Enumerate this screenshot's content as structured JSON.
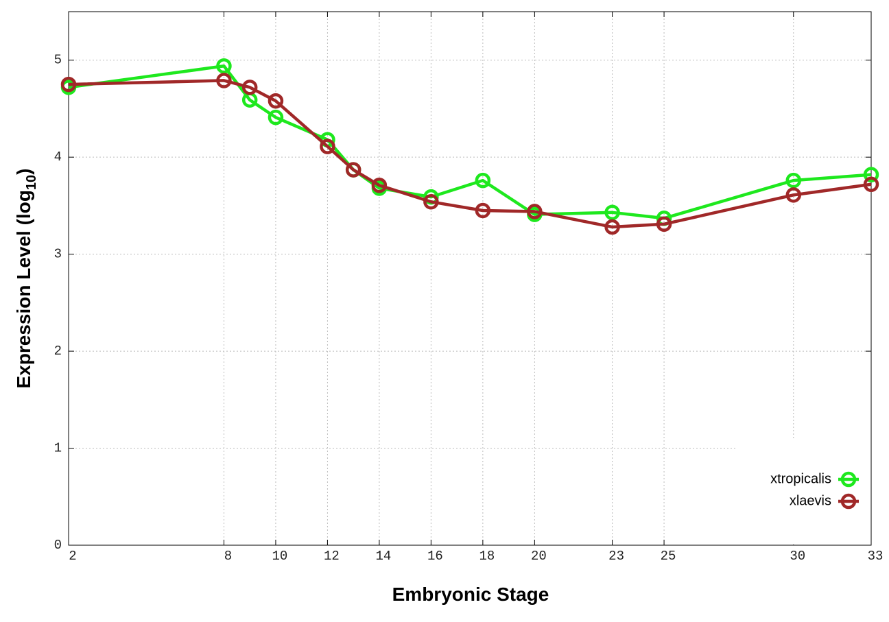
{
  "chart_data": {
    "type": "line",
    "x_label": "Embryonic Stage",
    "y_label": {
      "text": "Expression Level (log",
      "subscript": "10",
      "close": ")"
    },
    "xlim": [
      2,
      33
    ],
    "ylim": [
      0,
      5.5
    ],
    "xticks": [
      2,
      8,
      10,
      12,
      14,
      16,
      18,
      20,
      23,
      25,
      30,
      33
    ],
    "yticks": [
      0,
      1,
      2,
      3,
      4,
      5
    ],
    "grid": true,
    "legend": "lower right",
    "x": [
      2,
      8,
      9,
      10,
      12,
      13,
      14,
      16,
      18,
      20,
      23,
      25,
      30,
      33
    ],
    "series": [
      {
        "name": "xtropicalis",
        "color": "#1ee81e",
        "values": [
          4.72,
          4.94,
          4.59,
          4.41,
          4.18,
          3.87,
          3.68,
          3.59,
          3.76,
          3.41,
          3.43,
          3.37,
          3.76,
          3.82
        ]
      },
      {
        "name": "xlaevis",
        "color": "#a02828",
        "values": [
          4.75,
          4.79,
          4.72,
          4.58,
          4.11,
          3.87,
          3.71,
          3.54,
          3.45,
          3.44,
          3.28,
          3.31,
          3.61,
          3.72
        ]
      }
    ]
  }
}
